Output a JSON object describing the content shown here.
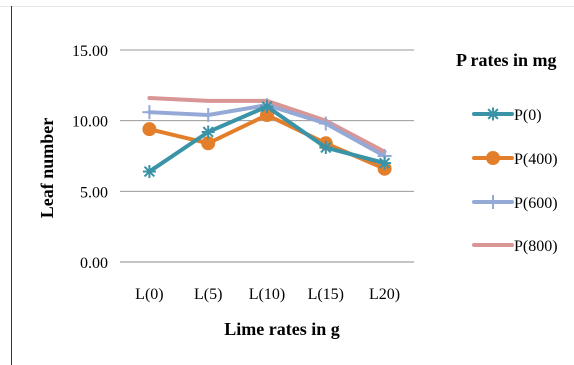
{
  "chart_data": {
    "type": "line",
    "categories": [
      "L(0)",
      "L(5)",
      "L(10)",
      "L(15)",
      "L20)"
    ],
    "ylabel": "Leaf number",
    "xlabel": "Lime rates in g",
    "legend_title": "P rates in mg",
    "ylim": [
      0,
      15
    ],
    "yticks": [
      "0.00",
      "5.00",
      "10.00",
      "15.00"
    ],
    "grid": true,
    "legend_position": "right",
    "series": [
      {
        "name": "P(0)",
        "color": "#3a93a6",
        "marker": "asterisk",
        "values": [
          6.4,
          9.2,
          11.0,
          8.1,
          7.0
        ]
      },
      {
        "name": "P(400)",
        "color": "#e37f2b",
        "marker": "circle",
        "values": [
          9.4,
          8.4,
          10.4,
          8.4,
          6.6
        ]
      },
      {
        "name": "P(600)",
        "color": "#94a9d6",
        "marker": "plus",
        "values": [
          10.6,
          10.4,
          11.1,
          9.8,
          7.5
        ]
      },
      {
        "name": "P(800)",
        "color": "#d99694",
        "marker": "none",
        "values": [
          11.6,
          11.4,
          11.4,
          10.0,
          7.8
        ]
      }
    ]
  }
}
